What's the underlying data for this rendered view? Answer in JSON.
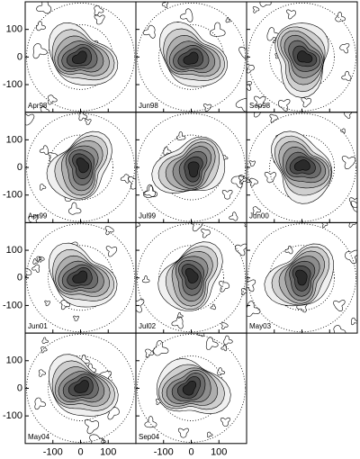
{
  "chart_data": {
    "type": "contour",
    "panels": [
      "Apr98",
      "Jun98",
      "Sep98",
      "Apr99",
      "Jul99",
      "Jun00",
      "Jun01",
      "Jul02",
      "May03",
      "May04",
      "Sep04"
    ],
    "xlim": [
      -200,
      200
    ],
    "ylim": [
      -200,
      200
    ],
    "xticks": [
      -100,
      0,
      100
    ],
    "yticks": [
      100,
      0,
      -100
    ]
  }
}
